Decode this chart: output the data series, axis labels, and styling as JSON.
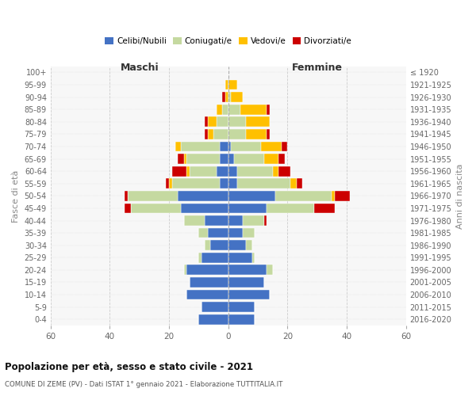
{
  "age_groups": [
    "0-4",
    "5-9",
    "10-14",
    "15-19",
    "20-24",
    "25-29",
    "30-34",
    "35-39",
    "40-44",
    "45-49",
    "50-54",
    "55-59",
    "60-64",
    "65-69",
    "70-74",
    "75-79",
    "80-84",
    "85-89",
    "90-94",
    "95-99",
    "100+"
  ],
  "birth_years": [
    "2016-2020",
    "2011-2015",
    "2006-2010",
    "2001-2005",
    "1996-2000",
    "1991-1995",
    "1986-1990",
    "1981-1985",
    "1976-1980",
    "1971-1975",
    "1966-1970",
    "1961-1965",
    "1956-1960",
    "1951-1955",
    "1946-1950",
    "1941-1945",
    "1936-1940",
    "1931-1935",
    "1926-1930",
    "1921-1925",
    "≤ 1920"
  ],
  "male": {
    "celibi": [
      10,
      9,
      14,
      13,
      14,
      9,
      6,
      7,
      8,
      16,
      17,
      3,
      4,
      3,
      3,
      0,
      0,
      0,
      0,
      0,
      0
    ],
    "coniugati": [
      0,
      0,
      0,
      0,
      1,
      1,
      2,
      3,
      7,
      17,
      17,
      16,
      9,
      11,
      13,
      5,
      4,
      2,
      0,
      0,
      0
    ],
    "vedovi": [
      0,
      0,
      0,
      0,
      0,
      0,
      0,
      0,
      0,
      0,
      0,
      1,
      1,
      1,
      2,
      2,
      3,
      2,
      1,
      1,
      0
    ],
    "divorziati": [
      0,
      0,
      0,
      0,
      0,
      0,
      0,
      0,
      0,
      2,
      1,
      1,
      5,
      2,
      0,
      1,
      1,
      0,
      1,
      0,
      0
    ]
  },
  "female": {
    "nubili": [
      9,
      9,
      14,
      12,
      13,
      8,
      6,
      5,
      5,
      13,
      16,
      3,
      3,
      2,
      1,
      0,
      0,
      0,
      0,
      0,
      0
    ],
    "coniugate": [
      0,
      0,
      0,
      0,
      2,
      1,
      2,
      4,
      7,
      16,
      19,
      18,
      12,
      10,
      10,
      6,
      6,
      4,
      1,
      0,
      0
    ],
    "vedove": [
      0,
      0,
      0,
      0,
      0,
      0,
      0,
      0,
      0,
      0,
      1,
      2,
      2,
      5,
      7,
      7,
      8,
      9,
      4,
      3,
      0
    ],
    "divorziate": [
      0,
      0,
      0,
      0,
      0,
      0,
      0,
      0,
      1,
      7,
      5,
      2,
      4,
      2,
      2,
      1,
      0,
      1,
      0,
      0,
      0
    ]
  },
  "colors": {
    "celibi": "#4472c4",
    "coniugati": "#c5d9a0",
    "vedovi": "#ffc000",
    "divorziati": "#cc0000"
  },
  "xlim": 60,
  "title_main": "Popolazione per età, sesso e stato civile - 2021",
  "title_sub": "COMUNE DI ZEME (PV) - Dati ISTAT 1° gennaio 2021 - Elaborazione TUTTITALIA.IT",
  "ylabel_left": "Fasce di età",
  "ylabel_right": "Anni di nascita",
  "xlabel_maschi": "Maschi",
  "xlabel_femmine": "Femmine",
  "legend_labels": [
    "Celibi/Nubili",
    "Coniugati/e",
    "Vedovi/e",
    "Divorziati/e"
  ],
  "background_color": "#ffffff",
  "plot_bg": "#f7f7f7",
  "grid_color": "#cccccc"
}
